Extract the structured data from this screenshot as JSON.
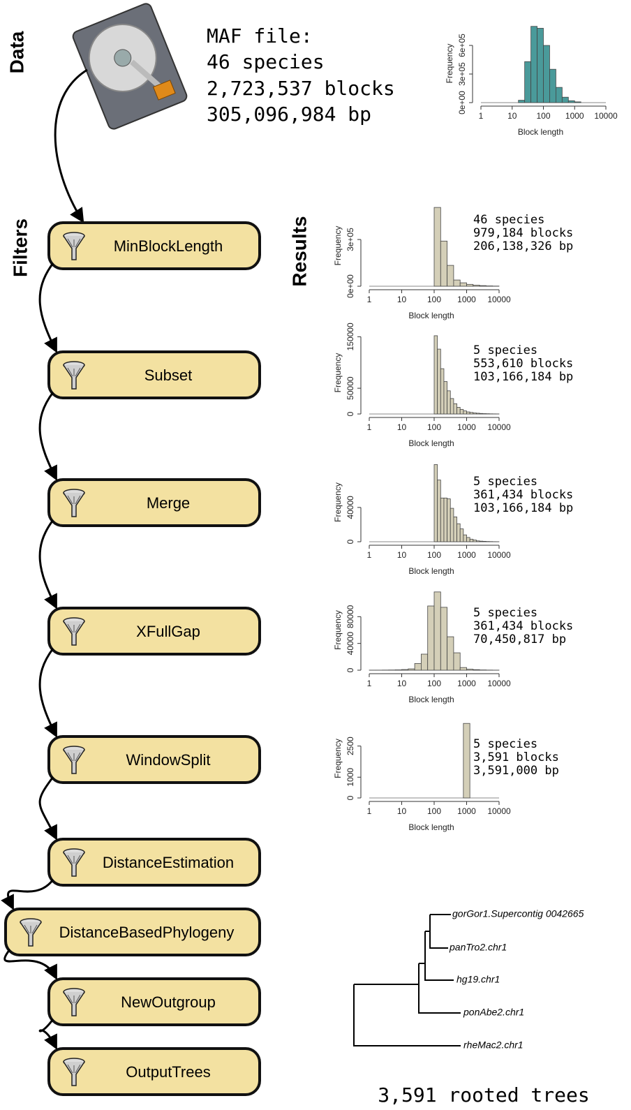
{
  "sections": {
    "data": "Data",
    "filters": "Filters",
    "results": "Results"
  },
  "maf_file": {
    "lines": [
      "MAF file:",
      "46 species",
      "2,723,537 blocks",
      "305,096,984 bp"
    ]
  },
  "filters": [
    "MinBlockLength",
    "Subset",
    "Merge",
    "XFullGap",
    "WindowSplit",
    "DistanceEstimation",
    "DistanceBasedPhylogeny",
    "NewOutgroup",
    "OutputTrees"
  ],
  "results": [
    [
      "46 species",
      "979,184 blocks",
      "206,138,326 bp"
    ],
    [
      "5 species",
      "553,610 blocks",
      "103,166,184 bp"
    ],
    [
      "5 species",
      "361,434 blocks",
      "103,166,184 bp"
    ],
    [
      "5 species",
      "361,434 blocks",
      "70,450,817 bp"
    ],
    [
      "5 species",
      "3,591 blocks",
      "3,591,000 bp"
    ]
  ],
  "chart_data": [
    {
      "type": "histogram",
      "xlabel": "Block length",
      "ylabel": "Frequency",
      "log_x": true,
      "color": "#4a9a9a",
      "bins": [
        15.85,
        25.12,
        39.81,
        63.1,
        100,
        158.5,
        251.2,
        398.1,
        631,
        1000,
        1585
      ],
      "values": [
        25000,
        430000,
        800000,
        780000,
        600000,
        350000,
        160000,
        57000,
        20000,
        8000
      ],
      "xlim": [
        1,
        10000
      ],
      "xticks": [
        1,
        10,
        100,
        1000,
        10000
      ],
      "ylim": [
        0,
        820000
      ],
      "yticks": [
        {
          "value": 0,
          "label": "0e+00"
        },
        {
          "value": 300000,
          "label": "3e+05"
        },
        {
          "value": 600000,
          "label": "6e+05"
        }
      ]
    },
    {
      "type": "histogram",
      "xlabel": "Block length",
      "ylabel": "Frequency",
      "log_x": true,
      "color": "#d4cfb8",
      "bins": [
        100,
        158.5,
        251.2,
        398.1,
        631,
        1000,
        1585,
        2512,
        3981,
        6310,
        10000
      ],
      "values": [
        506000,
        290000,
        134000,
        40000,
        22000,
        12000,
        7000,
        4000,
        2000,
        1000
      ],
      "xlim": [
        1,
        10000
      ],
      "xticks": [
        1,
        10,
        100,
        1000,
        10000
      ],
      "ylim": [
        0,
        520000
      ],
      "yticks": [
        {
          "value": 0,
          "label": "0e+00"
        },
        {
          "value": 300000,
          "label": "3e+05"
        }
      ]
    },
    {
      "type": "histogram",
      "xlabel": "Block length",
      "ylabel": "Frequency",
      "log_x": true,
      "color": "#d4cfb8",
      "bins": [
        100,
        125.9,
        158.5,
        199.5,
        251.2,
        316.2,
        398.1,
        501.2,
        631,
        794.3,
        1000,
        1259,
        1585,
        1995,
        2512,
        3162,
        3981,
        5012,
        6310,
        7943,
        10000
      ],
      "values": [
        152000,
        126000,
        88000,
        63000,
        45000,
        30000,
        20000,
        13000,
        9000,
        6000,
        4000,
        3000,
        2000,
        1500,
        1000,
        700,
        500,
        300,
        200,
        100
      ],
      "xlim": [
        1,
        10000
      ],
      "xticks": [
        1,
        10,
        100,
        1000,
        10000
      ],
      "ylim": [
        0,
        160000
      ],
      "yticks": [
        0,
        50000,
        150000
      ]
    },
    {
      "type": "histogram",
      "xlabel": "Block length",
      "ylabel": "Frequency",
      "log_x": true,
      "color": "#d4cfb8",
      "bins": [
        100,
        125.9,
        158.5,
        199.5,
        251.2,
        316.2,
        398.1,
        501.2,
        631,
        794.3,
        1000,
        1259,
        1585,
        1995,
        2512,
        3162,
        3981,
        5012,
        6310,
        7943,
        10000
      ],
      "values": [
        90000,
        72000,
        51000,
        51000,
        50000,
        39000,
        29000,
        21000,
        15000,
        8000,
        5000,
        3000,
        2000,
        1000,
        700,
        500,
        300,
        200,
        100,
        50
      ],
      "xlim": [
        1,
        10000
      ],
      "xticks": [
        1,
        10,
        100,
        1000,
        10000
      ],
      "ylim": [
        0,
        92000
      ],
      "yticks": [
        0,
        40000
      ]
    },
    {
      "type": "histogram",
      "xlabel": "Block length",
      "ylabel": "Frequency",
      "log_x": true,
      "color": "#d4cfb8",
      "bins": [
        1,
        1.585,
        2.512,
        3.981,
        6.31,
        10,
        15.85,
        25.12,
        39.81,
        63.1,
        100,
        158.5,
        251.2,
        398.1,
        631,
        1000,
        1585,
        2512,
        3981,
        6310,
        10000
      ],
      "values": [
        50,
        100,
        200,
        300,
        500,
        1000,
        2000,
        10000,
        24000,
        96000,
        117000,
        94000,
        50000,
        26000,
        4000,
        1500,
        800,
        400,
        200,
        100
      ],
      "xlim": [
        1,
        10000
      ],
      "xticks": [
        1,
        10,
        100,
        1000,
        10000
      ],
      "ylim": [
        0,
        120000
      ],
      "yticks": [
        0,
        40000,
        80000
      ]
    },
    {
      "type": "histogram",
      "xlabel": "Block length",
      "ylabel": "Frequency",
      "log_x": true,
      "color": "#d4cfb8",
      "bins": [
        794.3,
        1259
      ],
      "values": [
        3591
      ],
      "xlim": [
        1,
        10000
      ],
      "xticks": [
        1,
        10,
        100,
        1000,
        10000
      ],
      "ylim": [
        0,
        3800
      ],
      "yticks": [
        0,
        1000,
        2500
      ]
    }
  ],
  "tree": {
    "leaves": [
      "gorGor1.Supercontig 0042665",
      "panTro2.chr1",
      "hg19.chr1",
      "ponAbe2.chr1",
      "rheMac2.chr1"
    ],
    "caption": "3,591 rooted trees"
  }
}
